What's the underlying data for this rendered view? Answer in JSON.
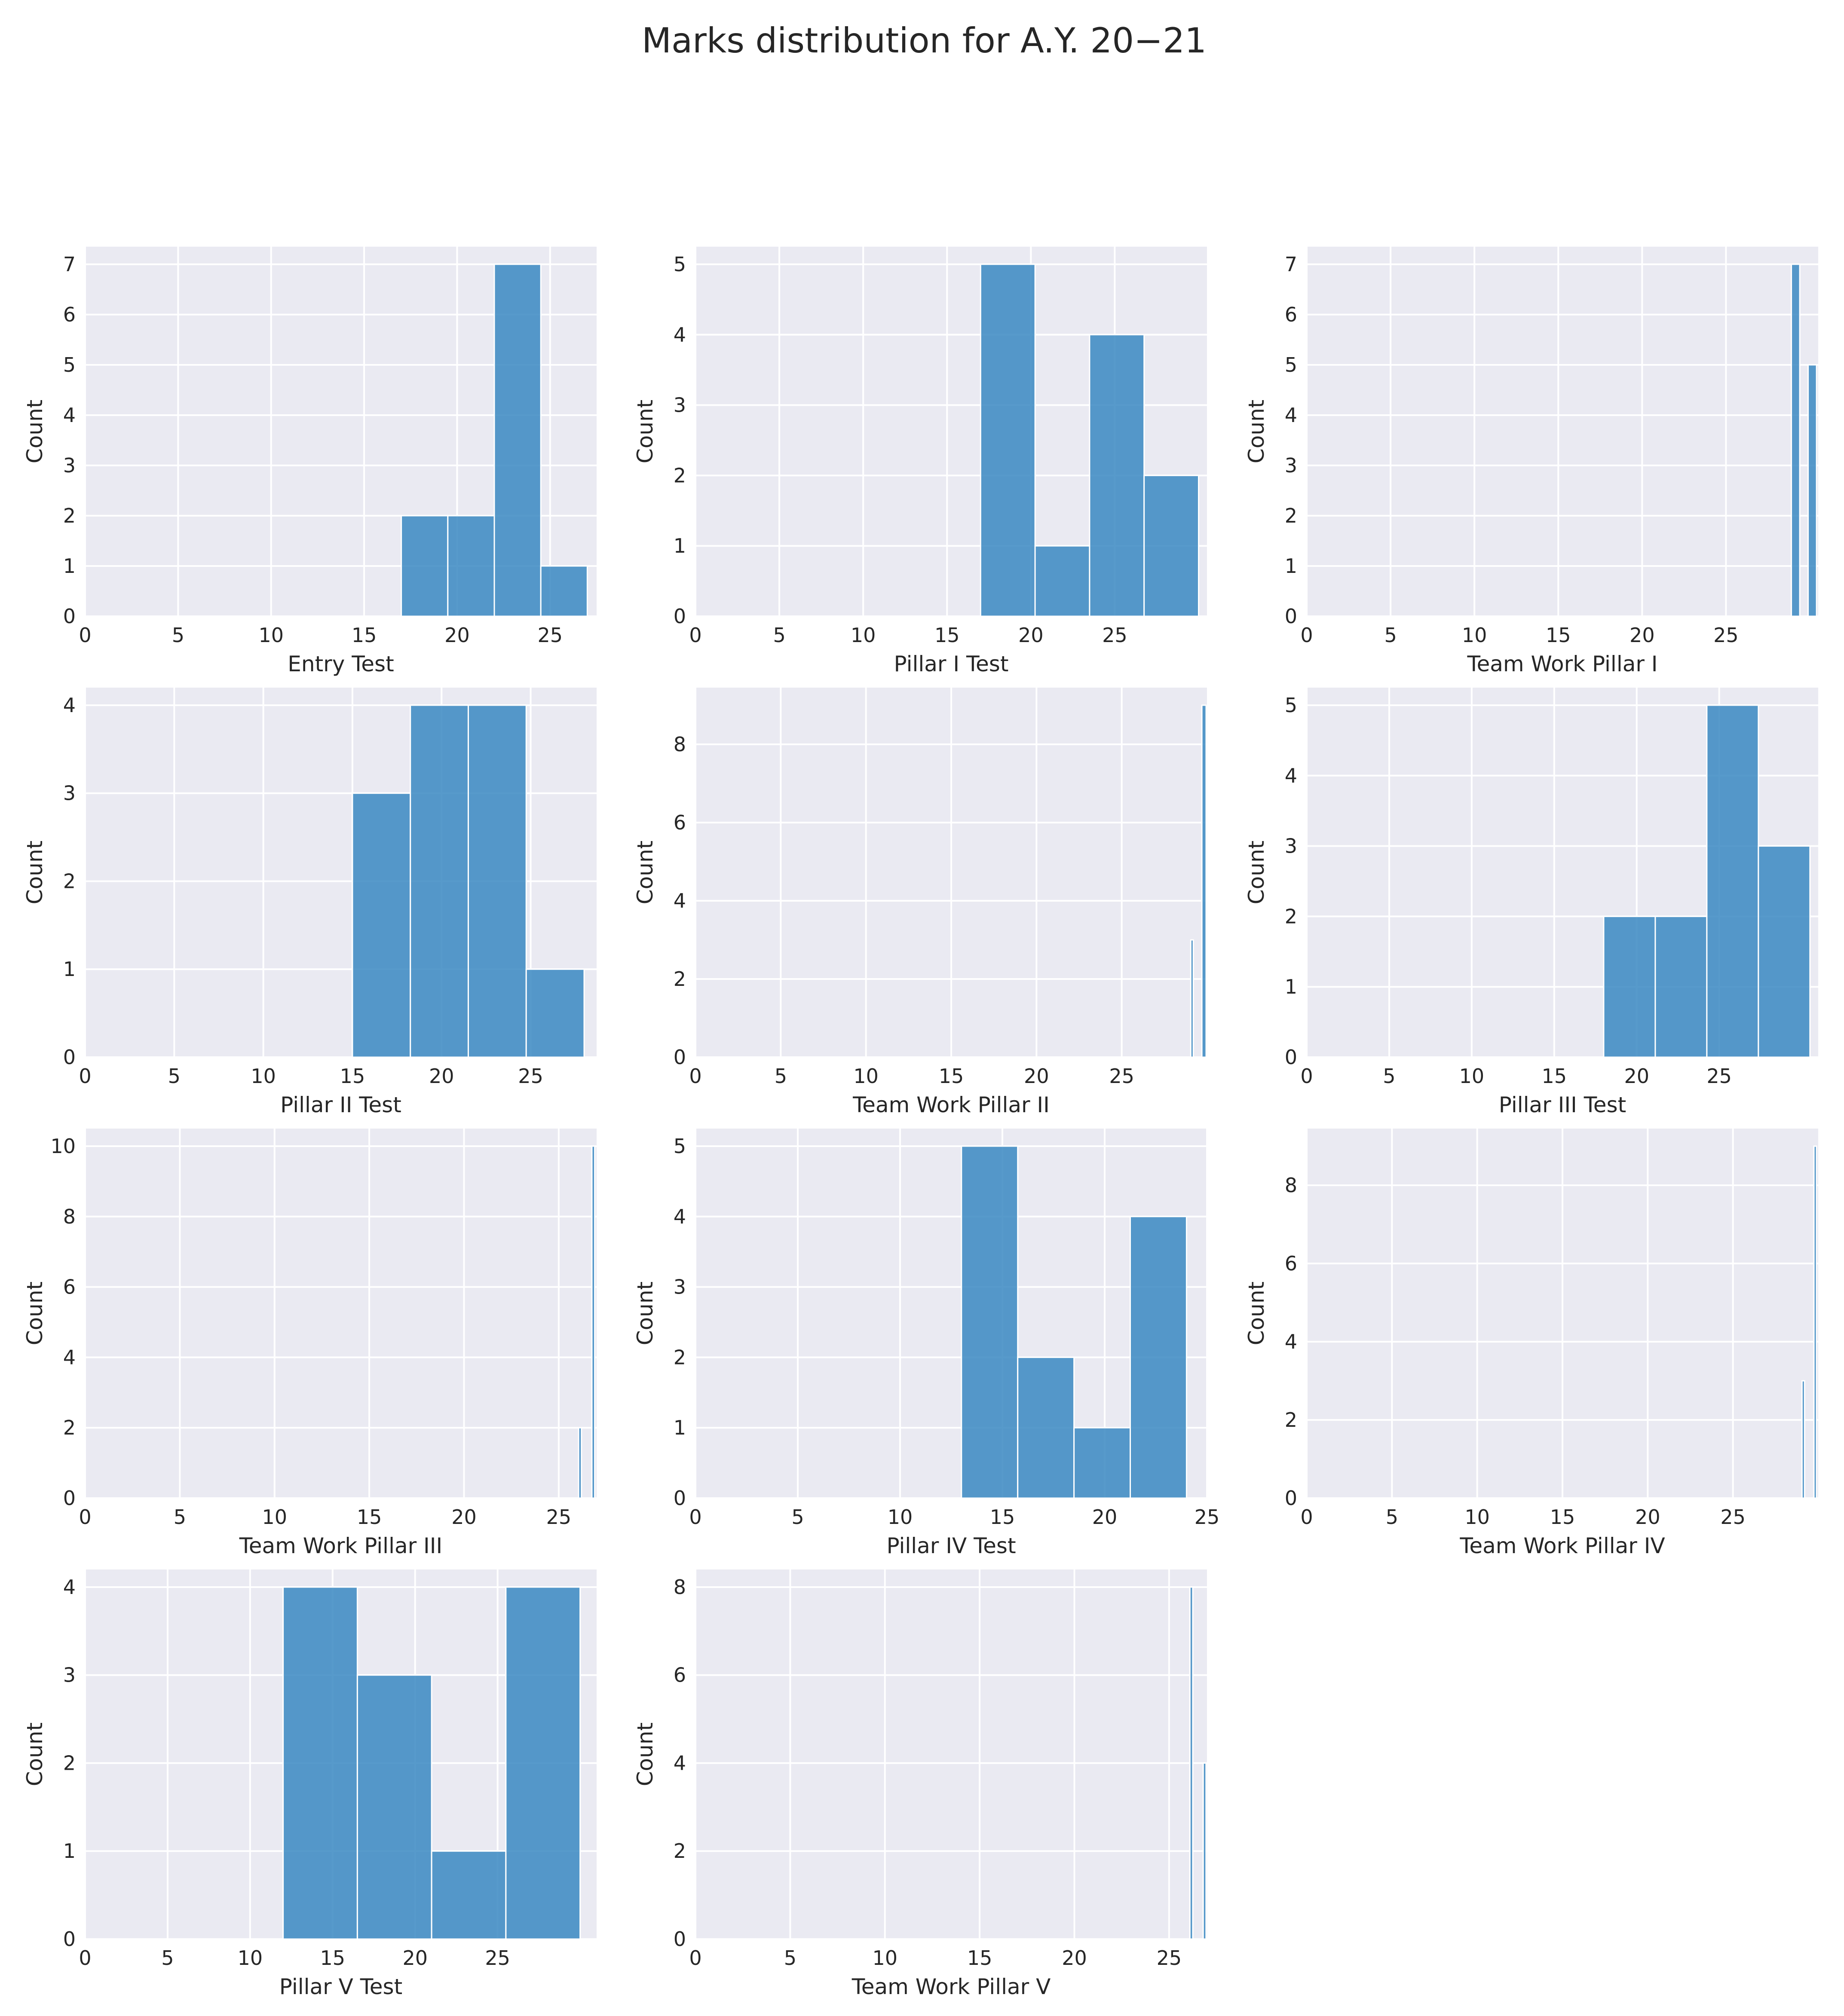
{
  "figure": {
    "title": "Marks distribution for A.Y. 20−21"
  },
  "style": {
    "panel_bg": "#eaeaf2",
    "grid": "#ffffff",
    "bar_fill": "#3a88c2",
    "bar_edge": "#ffffff",
    "text": "#262626"
  },
  "chart_data": [
    {
      "type": "bar",
      "name": "entry-test",
      "xlabel": "Entry Test",
      "ylabel": "Count",
      "xlim": [
        0,
        27.5
      ],
      "ylim": [
        0,
        7.35
      ],
      "xticks": [
        0,
        5,
        10,
        15,
        20,
        25
      ],
      "yticks": [
        0,
        1,
        2,
        3,
        4,
        5,
        6,
        7
      ],
      "bins": [
        [
          17,
          19.5,
          2
        ],
        [
          19.5,
          22,
          2
        ],
        [
          22,
          24.5,
          7
        ],
        [
          24.5,
          27,
          1
        ]
      ]
    },
    {
      "type": "bar",
      "name": "pillar-i-test",
      "xlabel": "Pillar I Test",
      "ylabel": "Count",
      "xlim": [
        0,
        30.5
      ],
      "ylim": [
        0,
        5.25
      ],
      "xticks": [
        0,
        5,
        10,
        15,
        20,
        25
      ],
      "yticks": [
        0,
        1,
        2,
        3,
        4,
        5
      ],
      "bins": [
        [
          17,
          20.25,
          5
        ],
        [
          20.25,
          23.5,
          1
        ],
        [
          23.5,
          26.75,
          4
        ],
        [
          26.75,
          30,
          2
        ]
      ]
    },
    {
      "type": "bar",
      "name": "team-work-pillar-i",
      "xlabel": "Team Work Pillar I",
      "ylabel": "Count",
      "xlim": [
        0,
        30.5
      ],
      "ylim": [
        0,
        7.35
      ],
      "xticks": [
        0,
        5,
        10,
        15,
        20,
        25
      ],
      "yticks": [
        0,
        1,
        2,
        3,
        4,
        5,
        6,
        7
      ],
      "bins": [
        [
          28.9,
          29.4,
          7
        ],
        [
          29.4,
          29.9,
          0
        ],
        [
          29.9,
          30.4,
          5
        ]
      ]
    },
    {
      "type": "bar",
      "name": "pillar-ii-test",
      "xlabel": "Pillar II Test",
      "ylabel": "Count",
      "xlim": [
        0,
        28.7
      ],
      "ylim": [
        0,
        4.2
      ],
      "xticks": [
        0,
        5,
        10,
        15,
        20,
        25
      ],
      "yticks": [
        0,
        1,
        2,
        3,
        4
      ],
      "bins": [
        [
          15,
          18.25,
          3
        ],
        [
          18.25,
          21.5,
          4
        ],
        [
          21.5,
          24.75,
          4
        ],
        [
          24.75,
          28,
          1
        ]
      ]
    },
    {
      "type": "bar",
      "name": "team-work-pillar-ii",
      "xlabel": "Team Work  Pillar II",
      "ylabel": "Count",
      "xlim": [
        0,
        30
      ],
      "ylim": [
        0,
        9.45
      ],
      "xticks": [
        0,
        5,
        10,
        15,
        20,
        25
      ],
      "yticks": [
        0,
        2,
        4,
        6,
        8
      ],
      "bins": [
        [
          29.05,
          29.2,
          3
        ],
        [
          29.2,
          29.7,
          0
        ],
        [
          29.7,
          29.95,
          9
        ]
      ]
    },
    {
      "type": "bar",
      "name": "pillar-iii-test",
      "xlabel": "Pillar III Test",
      "ylabel": "Count",
      "xlim": [
        0,
        31
      ],
      "ylim": [
        0,
        5.25
      ],
      "xticks": [
        0,
        5,
        10,
        15,
        20,
        25
      ],
      "yticks": [
        0,
        1,
        2,
        3,
        4,
        5
      ],
      "bins": [
        [
          18,
          21.125,
          2
        ],
        [
          21.125,
          24.25,
          2
        ],
        [
          24.25,
          27.375,
          5
        ],
        [
          27.375,
          30.5,
          3
        ]
      ]
    },
    {
      "type": "bar",
      "name": "team-work-pillar-iii",
      "xlabel": "Team Work  Pillar III",
      "ylabel": "Count",
      "xlim": [
        0,
        27
      ],
      "ylim": [
        0,
        10.5
      ],
      "xticks": [
        0,
        5,
        10,
        15,
        20,
        25
      ],
      "yticks": [
        0,
        2,
        4,
        6,
        8,
        10
      ],
      "bins": [
        [
          26.05,
          26.2,
          2
        ],
        [
          26.2,
          26.7,
          0
        ],
        [
          26.75,
          26.9,
          10
        ]
      ]
    },
    {
      "type": "bar",
      "name": "pillar-iv-test",
      "xlabel": "Pillar IV Test",
      "ylabel": "Count",
      "xlim": [
        0,
        25
      ],
      "ylim": [
        0,
        5.25
      ],
      "xticks": [
        0,
        5,
        10,
        15,
        20,
        25
      ],
      "yticks": [
        0,
        1,
        2,
        3,
        4,
        5
      ],
      "bins": [
        [
          13,
          15.75,
          5
        ],
        [
          15.75,
          18.5,
          2
        ],
        [
          18.5,
          21.25,
          1
        ],
        [
          21.25,
          24,
          4
        ]
      ]
    },
    {
      "type": "bar",
      "name": "team-work-pillar-iv",
      "xlabel": "Team Work  Pillar IV",
      "ylabel": "Count",
      "xlim": [
        0,
        30
      ],
      "ylim": [
        0,
        9.45
      ],
      "xticks": [
        0,
        5,
        10,
        15,
        20,
        25
      ],
      "yticks": [
        0,
        2,
        4,
        6,
        8
      ],
      "bins": [
        [
          29.05,
          29.2,
          3
        ],
        [
          29.2,
          29.7,
          0
        ],
        [
          29.75,
          29.9,
          9
        ]
      ]
    },
    {
      "type": "bar",
      "name": "pillar-v-test",
      "xlabel": "Pillar V Test",
      "ylabel": "Count",
      "xlim": [
        0,
        31
      ],
      "ylim": [
        0,
        4.2
      ],
      "xticks": [
        0,
        5,
        10,
        15,
        20,
        25
      ],
      "yticks": [
        0,
        1,
        2,
        3,
        4
      ],
      "bins": [
        [
          12,
          16.5,
          4
        ],
        [
          16.5,
          21,
          3
        ],
        [
          21,
          25.5,
          1
        ],
        [
          25.5,
          30,
          4
        ]
      ]
    },
    {
      "type": "bar",
      "name": "team-work-pillar-v",
      "xlabel": "Team Work  Pillar V",
      "ylabel": "Count",
      "xlim": [
        0,
        27
      ],
      "ylim": [
        0,
        8.4
      ],
      "xticks": [
        0,
        5,
        10,
        15,
        20,
        25
      ],
      "yticks": [
        0,
        2,
        4,
        6,
        8
      ],
      "bins": [
        [
          26.1,
          26.25,
          8
        ],
        [
          26.25,
          26.75,
          0
        ],
        [
          26.8,
          26.95,
          4
        ]
      ]
    }
  ]
}
